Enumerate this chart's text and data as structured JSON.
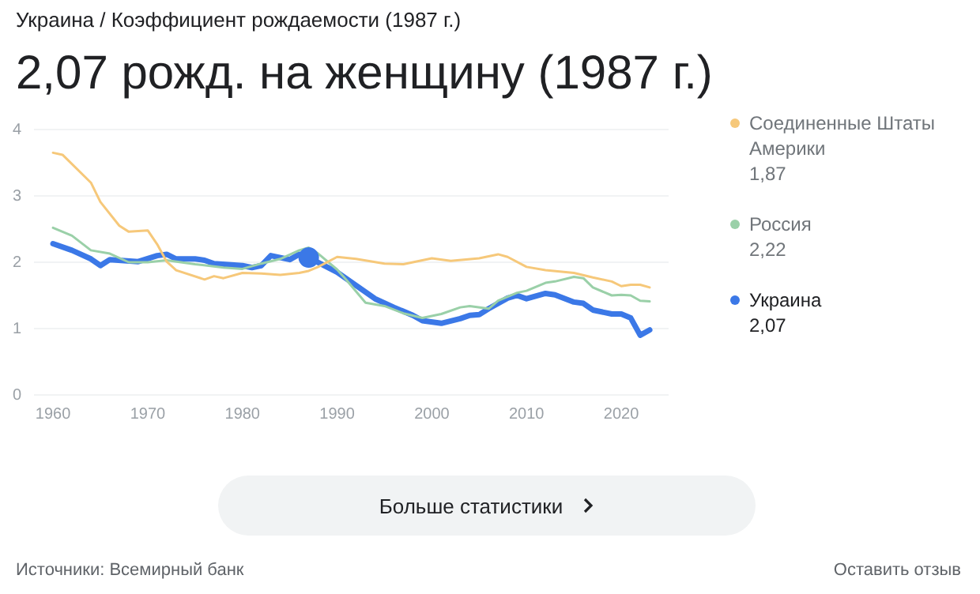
{
  "chart_data": {
    "type": "line",
    "subtitle": "Украина / Коэффициент рождаемости (1987 г.)",
    "title": "2,07 рожд. на женщину (1987 г.)",
    "xlim": [
      1958,
      2025
    ],
    "xticks": [
      1960,
      1970,
      1980,
      1990,
      2000,
      2010,
      2020
    ],
    "ylim": [
      0,
      4
    ],
    "yticks": [
      0,
      1,
      2,
      3,
      4
    ],
    "grid": "y",
    "legend": "right",
    "line_style": "solid",
    "series": [
      {
        "name": "Соединенные Штаты Америки",
        "color": "#f6c87a",
        "x": [
          1960,
          1961,
          1964,
          1965,
          1967,
          1968,
          1970,
          1971,
          1972,
          1973,
          1976,
          1977,
          1978,
          1980,
          1982,
          1984,
          1986,
          1987,
          1988,
          1990,
          1992,
          1995,
          1997,
          2000,
          2002,
          2005,
          2007,
          2008,
          2010,
          2012,
          2015,
          2017,
          2019,
          2020,
          2021,
          2022,
          2023
        ],
        "values": [
          3.65,
          3.62,
          3.2,
          2.91,
          2.55,
          2.46,
          2.48,
          2.27,
          2.01,
          1.88,
          1.74,
          1.79,
          1.76,
          1.84,
          1.83,
          1.81,
          1.84,
          1.87,
          1.93,
          2.08,
          2.05,
          1.98,
          1.97,
          2.06,
          2.02,
          2.06,
          2.12,
          2.08,
          1.93,
          1.88,
          1.84,
          1.77,
          1.71,
          1.64,
          1.66,
          1.66,
          1.62
        ]
      },
      {
        "name": "Россия",
        "color": "#9ad0a8",
        "x": [
          1960,
          1962,
          1964,
          1966,
          1968,
          1970,
          1972,
          1975,
          1978,
          1980,
          1982,
          1984,
          1986,
          1987,
          1988,
          1990,
          1991,
          1993,
          1995,
          1997,
          1999,
          2001,
          2003,
          2004,
          2006,
          2007,
          2009,
          2010,
          2012,
          2013,
          2015,
          2016,
          2017,
          2019,
          2020,
          2021,
          2022,
          2023
        ],
        "values": [
          2.52,
          2.4,
          2.18,
          2.13,
          2.0,
          2.0,
          2.03,
          1.97,
          1.92,
          1.9,
          1.98,
          2.05,
          2.18,
          2.22,
          2.13,
          1.89,
          1.73,
          1.39,
          1.34,
          1.23,
          1.16,
          1.22,
          1.32,
          1.34,
          1.3,
          1.42,
          1.54,
          1.57,
          1.69,
          1.71,
          1.78,
          1.76,
          1.62,
          1.5,
          1.51,
          1.5,
          1.42,
          1.41
        ]
      },
      {
        "name": "Украина",
        "color": "#3b78e7",
        "x": [
          1960,
          1962,
          1964,
          1965,
          1966,
          1969,
          1971,
          1972,
          1973,
          1975,
          1976,
          1977,
          1980,
          1981,
          1982,
          1983,
          1985,
          1986,
          1987,
          1990,
          1992,
          1994,
          1996,
          1998,
          1999,
          2001,
          2003,
          2004,
          2005,
          2006,
          2008,
          2009,
          2010,
          2012,
          2013,
          2015,
          2016,
          2017,
          2019,
          2020,
          2021,
          2022,
          2023
        ],
        "values": [
          2.28,
          2.18,
          2.05,
          1.95,
          2.04,
          2.01,
          2.1,
          2.12,
          2.05,
          2.05,
          2.03,
          1.98,
          1.95,
          1.92,
          1.95,
          2.1,
          2.04,
          2.12,
          2.07,
          1.85,
          1.65,
          1.45,
          1.32,
          1.2,
          1.12,
          1.08,
          1.15,
          1.2,
          1.21,
          1.3,
          1.46,
          1.5,
          1.45,
          1.53,
          1.51,
          1.4,
          1.38,
          1.28,
          1.22,
          1.22,
          1.16,
          0.9,
          0.98
        ]
      },
      {
        "type": "scatter",
        "color": "#3b78e7",
        "x": [
          1987
        ],
        "values": [
          2.07
        ]
      }
    ],
    "annotations": [
      "1,87",
      "2,22",
      "2,07",
      "Больше статистики",
      "Источники: Всемирный банк",
      "Оставить отзыв"
    ]
  }
}
